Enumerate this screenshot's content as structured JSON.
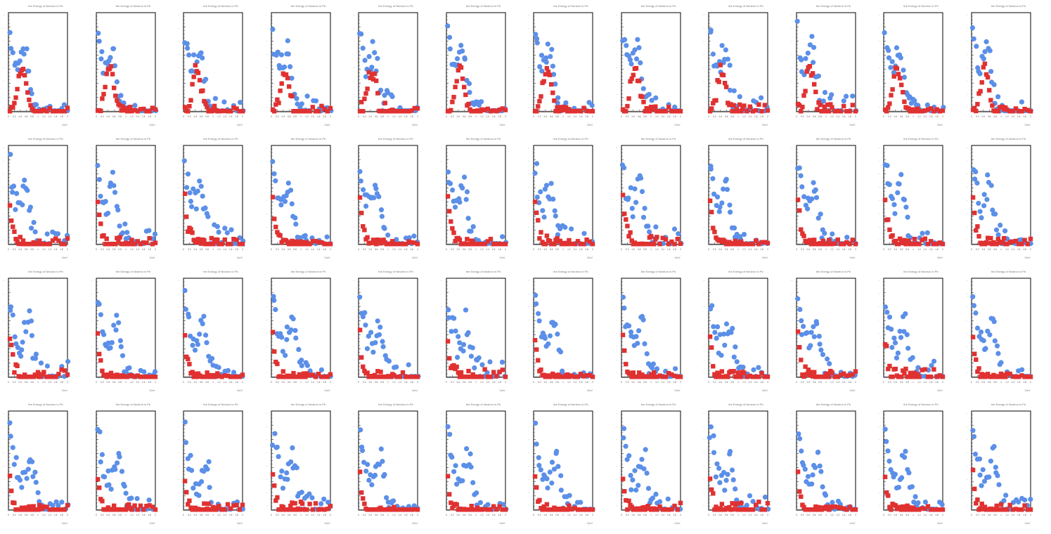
{
  "colors": {
    "series_blue": "#5b8fe8",
    "series_red": "#e03131",
    "frame": "#000000",
    "background": "#ffffff"
  },
  "panel_title": "the Energy of Neutron in Pb",
  "x_unit_label": "GeV",
  "x_tick_labels": [
    "0",
    "0.2",
    "0.4",
    "0.6",
    "0.8",
    "1",
    "1.2",
    "1.4",
    "1.6",
    "1.8",
    "2"
  ],
  "chart_data": {
    "type": "scatter",
    "layout": "grid of 48 small panels (4 rows x 12 columns)",
    "panel_count": 48,
    "xlim": [
      0,
      2
    ],
    "grid": false,
    "legend": "none",
    "markers": {
      "blue": "circle",
      "red": "square"
    },
    "x": [
      0.05,
      0.1,
      0.15,
      0.2,
      0.25,
      0.3,
      0.35,
      0.4,
      0.45,
      0.5,
      0.55,
      0.6,
      0.65,
      0.7,
      0.75,
      0.8,
      0.85,
      0.9,
      0.95,
      1.0,
      1.05,
      1.1,
      1.15,
      1.2,
      1.3,
      1.4,
      1.5,
      1.6,
      1.7,
      1.8,
      1.9,
      2.0
    ],
    "series_shapes": [
      {
        "blue_peak_x": 0.05,
        "blue_second_peak_x": 0.55,
        "red_peak_x": 0.45,
        "red_width": 0.2
      },
      {
        "blue_peak_x": 0.05,
        "blue_second_peak_x": 0.6,
        "red_peak_x": 0.2,
        "red_width": 0.12
      },
      {
        "blue_peak_x": 0.05,
        "blue_second_peak_x": 0.7,
        "red_peak_x": 0.05,
        "red_width": 0.1
      },
      {
        "blue_peak_x": 0.05,
        "blue_second_peak_x": 0.75,
        "red_peak_x": 0.05,
        "red_width": 0.08
      }
    ]
  }
}
